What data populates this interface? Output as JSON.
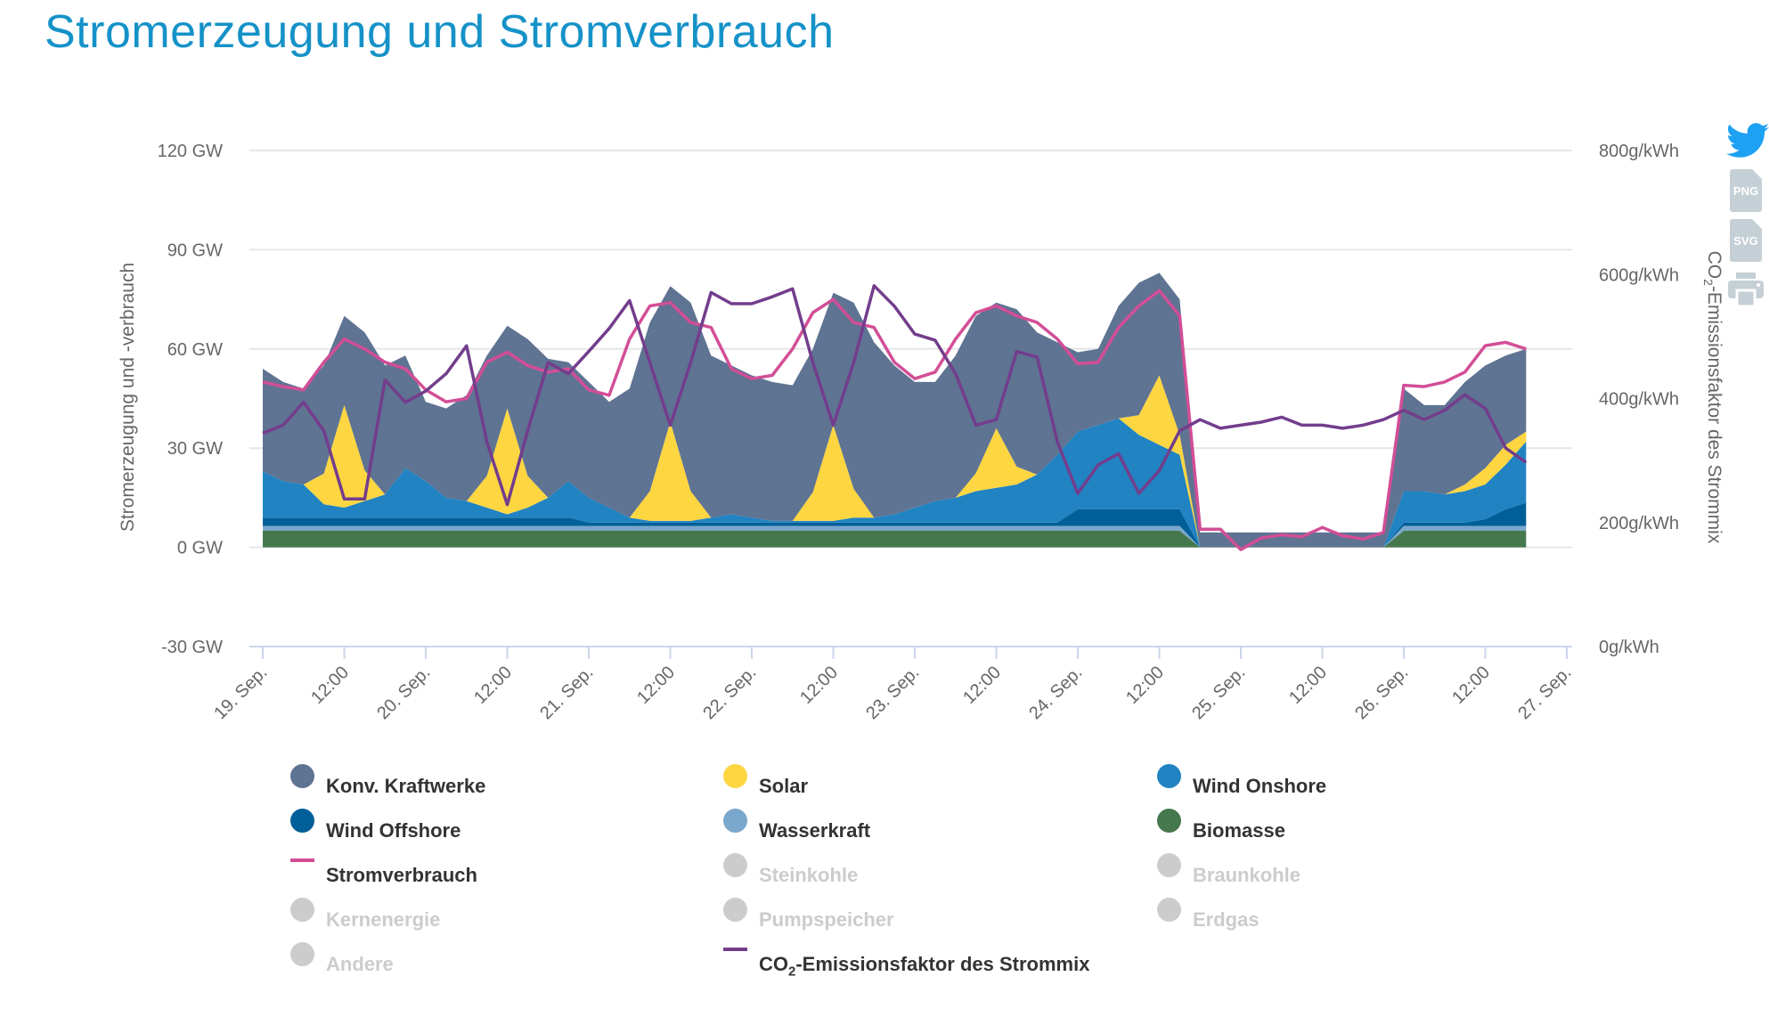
{
  "title": "Stromerzeugung und Stromverbrauch",
  "export_icons": {
    "png": "PNG",
    "svg": "SVG"
  },
  "chart_data": {
    "type": "area",
    "title": "Stromerzeugung und Stromverbrauch",
    "ylabel": "Stromerzeugung und -verbrauch",
    "ylabel_right_prefix": "CO",
    "ylabel_right_sub": "2",
    "ylabel_right_suffix": "-Emissionsfaktor des Strommix",
    "ylim": [
      -30,
      120
    ],
    "ylim_right": [
      0,
      800
    ],
    "yticks": [
      "120 GW",
      "90 GW",
      "60 GW",
      "30 GW",
      "0 GW",
      "-30 GW"
    ],
    "ytick_values": [
      120,
      90,
      60,
      30,
      0,
      -30
    ],
    "yticks_right": [
      "800g/kWh",
      "600g/kWh",
      "400g/kWh",
      "200g/kWh",
      "0g/kWh"
    ],
    "ytick_right_values": [
      800,
      600,
      400,
      200,
      0
    ],
    "xticks": [
      "19. Sep.",
      "12:00",
      "20. Sep.",
      "12:00",
      "21. Sep.",
      "12:00",
      "22. Sep.",
      "12:00",
      "23. Sep.",
      "12:00",
      "24. Sep.",
      "12:00",
      "25. Sep.",
      "12:00",
      "26. Sep.",
      "12:00",
      "27. Sep."
    ],
    "xtick_hours": [
      0,
      12,
      24,
      36,
      48,
      60,
      72,
      84,
      96,
      108,
      120,
      132,
      144,
      156,
      168,
      180,
      192
    ],
    "xlim_hours": [
      0,
      192
    ],
    "grid": true,
    "legend_placement": "bottom",
    "x_hours": [
      0,
      3,
      6,
      9,
      12,
      15,
      18,
      21,
      24,
      27,
      30,
      33,
      36,
      39,
      42,
      45,
      48,
      51,
      54,
      57,
      60,
      63,
      66,
      69,
      72,
      75,
      78,
      81,
      84,
      87,
      90,
      93,
      96,
      99,
      102,
      105,
      108,
      111,
      114,
      117,
      120,
      123,
      126,
      129,
      132,
      135,
      138,
      141,
      144,
      147,
      150,
      153,
      156,
      159,
      162,
      165,
      168,
      171,
      174,
      177,
      180,
      183,
      186
    ],
    "stacked_series": [
      {
        "name": "Biomasse",
        "color": "#46784e",
        "values": [
          5,
          5,
          5,
          5,
          5,
          5,
          5,
          5,
          5,
          5,
          5,
          5,
          5,
          5,
          5,
          5,
          5,
          5,
          5,
          5,
          5,
          5,
          5,
          5,
          5,
          5,
          5,
          5,
          5,
          5,
          5,
          5,
          5,
          5,
          5,
          5,
          5,
          5,
          5,
          5,
          5,
          5,
          5,
          5,
          5,
          5,
          0,
          0,
          0,
          0,
          0,
          0,
          0,
          0,
          0,
          0,
          5,
          5,
          5,
          5,
          5,
          5,
          5
        ]
      },
      {
        "name": "Wasserkraft",
        "color": "#7aa7cc",
        "values": [
          1.5,
          1.5,
          1.5,
          1.5,
          1.5,
          1.5,
          1.5,
          1.5,
          1.5,
          1.5,
          1.5,
          1.5,
          1.5,
          1.5,
          1.5,
          1.5,
          1.5,
          1.5,
          1.5,
          1.5,
          1.5,
          1.5,
          1.5,
          1.5,
          1.5,
          1.5,
          1.5,
          1.5,
          1.5,
          1.5,
          1.5,
          1.5,
          1.5,
          1.5,
          1.5,
          1.5,
          1.5,
          1.5,
          1.5,
          1.5,
          1.5,
          1.5,
          1.5,
          1.5,
          1.5,
          1.5,
          0,
          0,
          0,
          0,
          0,
          0,
          0,
          0,
          0,
          0,
          1.5,
          1.5,
          1.5,
          1.5,
          1.5,
          1.5,
          1.5
        ]
      },
      {
        "name": "Wind Offshore",
        "color": "#005f99",
        "values": [
          2.5,
          2.5,
          2.5,
          2.5,
          2.5,
          2.5,
          2.5,
          2.5,
          2.5,
          2.5,
          2.5,
          2.5,
          2.5,
          2.5,
          2.5,
          2.5,
          1,
          1,
          1,
          1,
          1,
          1,
          1,
          1,
          1,
          1,
          1,
          1,
          1,
          1,
          1,
          1,
          1,
          1,
          1,
          1,
          1,
          1,
          1,
          1,
          5,
          5,
          5,
          5,
          5,
          5,
          0,
          0,
          0,
          0,
          0,
          0,
          0,
          0,
          0,
          0,
          1,
          1,
          1,
          1,
          2,
          5,
          7
        ]
      },
      {
        "name": "Wind Onshore",
        "color": "#2183c2",
        "values": [
          14,
          11,
          10,
          4,
          3,
          5,
          7,
          15,
          11,
          6,
          5,
          3,
          1,
          3,
          6,
          11,
          7.5,
          4.5,
          1.5,
          0.5,
          0.5,
          0.5,
          1.5,
          2.5,
          1.5,
          0.5,
          0.5,
          0.5,
          0.5,
          1.5,
          1.5,
          2.5,
          4.5,
          6.5,
          7.5,
          9.5,
          10.5,
          11.5,
          14.5,
          20.5,
          23.5,
          25.5,
          27.5,
          22.5,
          19.5,
          16.5,
          0,
          0,
          0,
          0,
          0,
          0,
          0,
          0,
          0,
          0,
          9.5,
          9.5,
          8.5,
          9.5,
          10.5,
          13.5,
          18.5
        ]
      },
      {
        "name": "Solar",
        "color": "#fdd642",
        "values": [
          0,
          0,
          0,
          9.3,
          31,
          9.3,
          0,
          0,
          0,
          0,
          0,
          9.6,
          32,
          9.6,
          0,
          0,
          0,
          0,
          0,
          9,
          30,
          9,
          0,
          0,
          0,
          0,
          0,
          8.7,
          29,
          8.7,
          0,
          0,
          0,
          0,
          0,
          5.4,
          18,
          5.4,
          0,
          0,
          0,
          0,
          0,
          6,
          21,
          6,
          0,
          0,
          0,
          0,
          0,
          0,
          0,
          0,
          0,
          0,
          0,
          0,
          0,
          2,
          5,
          6,
          3
        ]
      },
      {
        "name": "Konv. Kraftwerke",
        "color": "#5f7392",
        "values": [
          31,
          30,
          29,
          32.7,
          27,
          41.7,
          39,
          34,
          24,
          27,
          32,
          36.4,
          25,
          41.4,
          42,
          36,
          35,
          32,
          39,
          51,
          41,
          57,
          49,
          45,
          43,
          42,
          41,
          43.3,
          40,
          56.3,
          53,
          45,
          38,
          36,
          43,
          47.6,
          38,
          47.6,
          43,
          34,
          24,
          23,
          34,
          40,
          31,
          41,
          4.5,
          4.5,
          4.5,
          4.5,
          4.5,
          4.5,
          4.5,
          4.5,
          4.5,
          4.5,
          31,
          26,
          27,
          31,
          31,
          27,
          25
        ]
      }
    ],
    "line_series": [
      {
        "name": "Stromverbrauch",
        "color": "#d24e97",
        "axis": "left",
        "unit": "GW",
        "values": [
          50,
          48.6,
          47.6,
          56,
          63,
          60,
          56,
          54,
          47.6,
          44,
          45,
          56,
          59,
          55,
          53,
          54,
          47.6,
          46,
          63,
          73,
          74,
          68,
          66.5,
          54,
          51,
          52,
          60,
          71,
          75,
          68,
          66.5,
          56,
          51,
          53,
          63,
          71,
          73,
          70,
          68,
          63,
          55.5,
          56,
          66.5,
          73,
          77.6,
          70,
          5.5,
          5.5,
          -0.7,
          2.8,
          3.8,
          3.2,
          6,
          3.5,
          2.5,
          4.5,
          49,
          48.6,
          50,
          53,
          61,
          62,
          60
        ]
      },
      {
        "name": "CO2-Emissionsfaktor des Strommix",
        "color": "#733d8c",
        "axis": "right",
        "unit": "g/kWh",
        "values": [
          344,
          357,
          394,
          348,
          238,
          238,
          430,
          394,
          412,
          440,
          485,
          330,
          229,
          348,
          458,
          440,
          476,
          513,
          558,
          458,
          357,
          458,
          571,
          553,
          553,
          564,
          577,
          458,
          357,
          458,
          582,
          549,
          504,
          494,
          440,
          357,
          366,
          476,
          467,
          330,
          247,
          293,
          311,
          247,
          284,
          348,
          366,
          352,
          357,
          362,
          370,
          357,
          357,
          352,
          357,
          366,
          381,
          366,
          381,
          406,
          384,
          320,
          297
        ]
      }
    ],
    "legend": [
      {
        "label": "Konv. Kraftwerke",
        "type": "area",
        "color": "#5f7392",
        "visible": true
      },
      {
        "label": "Solar",
        "type": "area",
        "color": "#fdd642",
        "visible": true
      },
      {
        "label": "Wind Onshore",
        "type": "area",
        "color": "#2183c2",
        "visible": true
      },
      {
        "label": "Wind Offshore",
        "type": "area",
        "color": "#005f99",
        "visible": true
      },
      {
        "label": "Wasserkraft",
        "type": "area",
        "color": "#7aa7cc",
        "visible": true
      },
      {
        "label": "Biomasse",
        "type": "area",
        "color": "#46784e",
        "visible": true
      },
      {
        "label": "Stromverbrauch",
        "type": "line",
        "color": "#d24e97",
        "visible": true
      },
      {
        "label": "Steinkohle",
        "type": "area",
        "color": "#cccccc",
        "visible": false
      },
      {
        "label": "Braunkohle",
        "type": "area",
        "color": "#cccccc",
        "visible": false
      },
      {
        "label": "Kernenergie",
        "type": "area",
        "color": "#cccccc",
        "visible": false
      },
      {
        "label": "Pumpspeicher",
        "type": "area",
        "color": "#cccccc",
        "visible": false
      },
      {
        "label": "Erdgas",
        "type": "area",
        "color": "#cccccc",
        "visible": false
      },
      {
        "label": "Andere",
        "type": "area",
        "color": "#cccccc",
        "visible": false
      },
      {
        "label_prefix": "CO",
        "label_sub": "2",
        "label_suffix": "-Emissionsfaktor des Strommix",
        "type": "line",
        "color": "#733d8c",
        "visible": true
      }
    ]
  }
}
